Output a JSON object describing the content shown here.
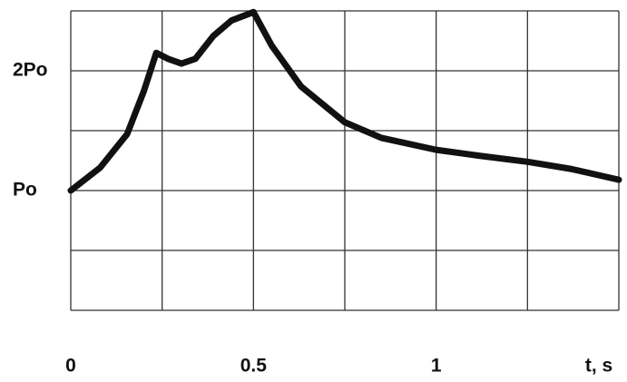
{
  "chart_data": {
    "type": "line",
    "x_label": "t, s",
    "x": [
      0,
      0.08,
      0.154,
      0.2,
      0.234,
      0.266,
      0.303,
      0.341,
      0.39,
      0.44,
      0.5,
      0.55,
      0.63,
      0.75,
      0.85,
      1.0,
      1.12,
      1.25,
      1.37,
      1.5
    ],
    "series": [
      {
        "color": "#111111",
        "values": [
          1.0,
          1.19,
          1.47,
          1.83,
          2.15,
          2.1,
          2.06,
          2.1,
          2.29,
          2.42,
          2.49,
          2.21,
          1.87,
          1.57,
          1.44,
          1.34,
          1.29,
          1.24,
          1.18,
          1.09
        ]
      }
    ],
    "xlim": [
      0,
      1.5
    ],
    "ylim": [
      0,
      2.5
    ],
    "xticks": [
      0,
      0.5,
      1
    ],
    "yticks": [
      {
        "value": 1,
        "label": "Po"
      },
      {
        "value": 2,
        "label": "2Po"
      }
    ],
    "xgrid": [
      0,
      0.25,
      0.5,
      0.75,
      1,
      1.25,
      1.5
    ],
    "ygrid": [
      0,
      0.5,
      1,
      1.5,
      2,
      2.5
    ],
    "grid": true
  }
}
